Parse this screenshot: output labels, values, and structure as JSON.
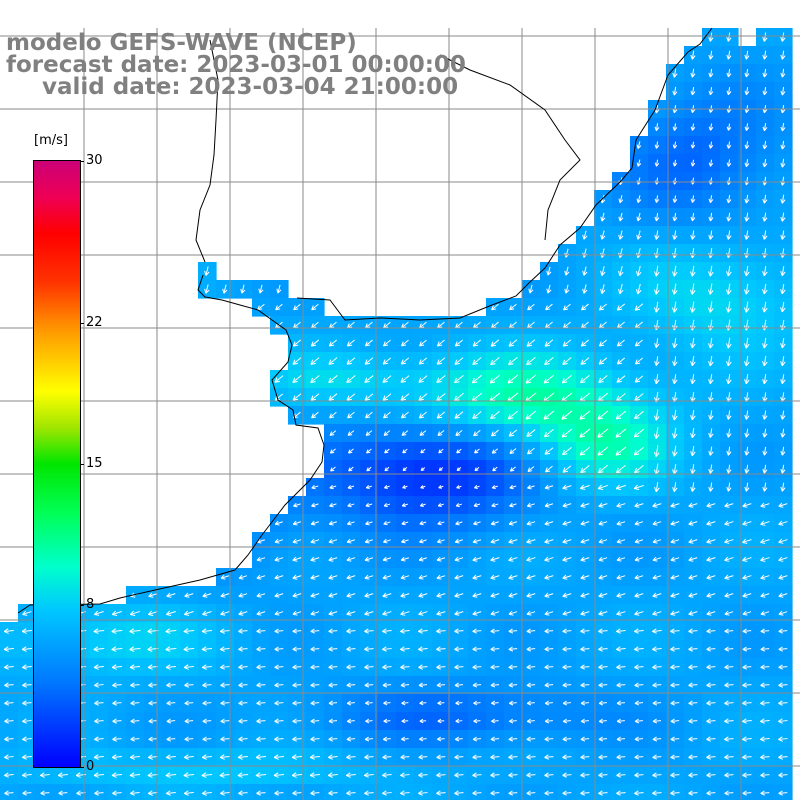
{
  "title": {
    "line1": "modelo GEFS-WAVE (NCEP)",
    "line2": "forecast date: 2023-03-01 00:00:00",
    "line3": "valid date: 2023-03-04 21:00:00"
  },
  "colorbar": {
    "unit": "[m/s]",
    "ticks": [
      {
        "value": 30,
        "label": "30"
      },
      {
        "value": 22,
        "label": "22"
      },
      {
        "value": 15,
        "label": "15"
      },
      {
        "value": 8,
        "label": "8"
      },
      {
        "value": 0,
        "label": "0"
      }
    ],
    "min": 0,
    "max": 30
  },
  "map": {
    "variable": "wind speed",
    "land_color": "#ffffff",
    "coast_color": "#000000",
    "grid_color": "#888888",
    "vector_color": "#ffffff"
  }
}
